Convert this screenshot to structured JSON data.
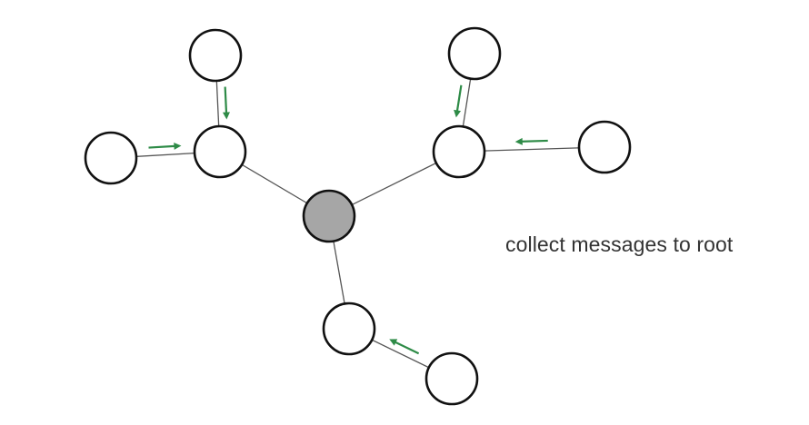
{
  "caption": "collect messages to root",
  "colors": {
    "root_fill": "#a6a6a6",
    "node_fill": "#ffffff",
    "node_stroke": "#111111",
    "edge": "#555555",
    "arrow": "#2e8b47"
  },
  "diagram": {
    "root": "root",
    "nodes": [
      {
        "id": "root",
        "type": "root"
      },
      {
        "id": "left-hub",
        "type": "node"
      },
      {
        "id": "left-top",
        "type": "node"
      },
      {
        "id": "left-far",
        "type": "node"
      },
      {
        "id": "right-hub",
        "type": "node"
      },
      {
        "id": "right-top",
        "type": "node"
      },
      {
        "id": "right-far",
        "type": "node"
      },
      {
        "id": "bottom-hub",
        "type": "node"
      },
      {
        "id": "bottom-far",
        "type": "node"
      }
    ],
    "edges": [
      {
        "from": "left-hub",
        "to": "root"
      },
      {
        "from": "right-hub",
        "to": "root"
      },
      {
        "from": "bottom-hub",
        "to": "root"
      },
      {
        "from": "left-top",
        "to": "left-hub"
      },
      {
        "from": "left-far",
        "to": "left-hub"
      },
      {
        "from": "right-top",
        "to": "right-hub"
      },
      {
        "from": "right-far",
        "to": "right-hub"
      },
      {
        "from": "bottom-far",
        "to": "bottom-hub"
      }
    ],
    "messages": [
      {
        "from": "left-top",
        "to": "left-hub"
      },
      {
        "from": "left-far",
        "to": "left-hub"
      },
      {
        "from": "right-top",
        "to": "right-hub"
      },
      {
        "from": "right-far",
        "to": "right-hub"
      },
      {
        "from": "bottom-far",
        "to": "bottom-hub"
      }
    ]
  }
}
